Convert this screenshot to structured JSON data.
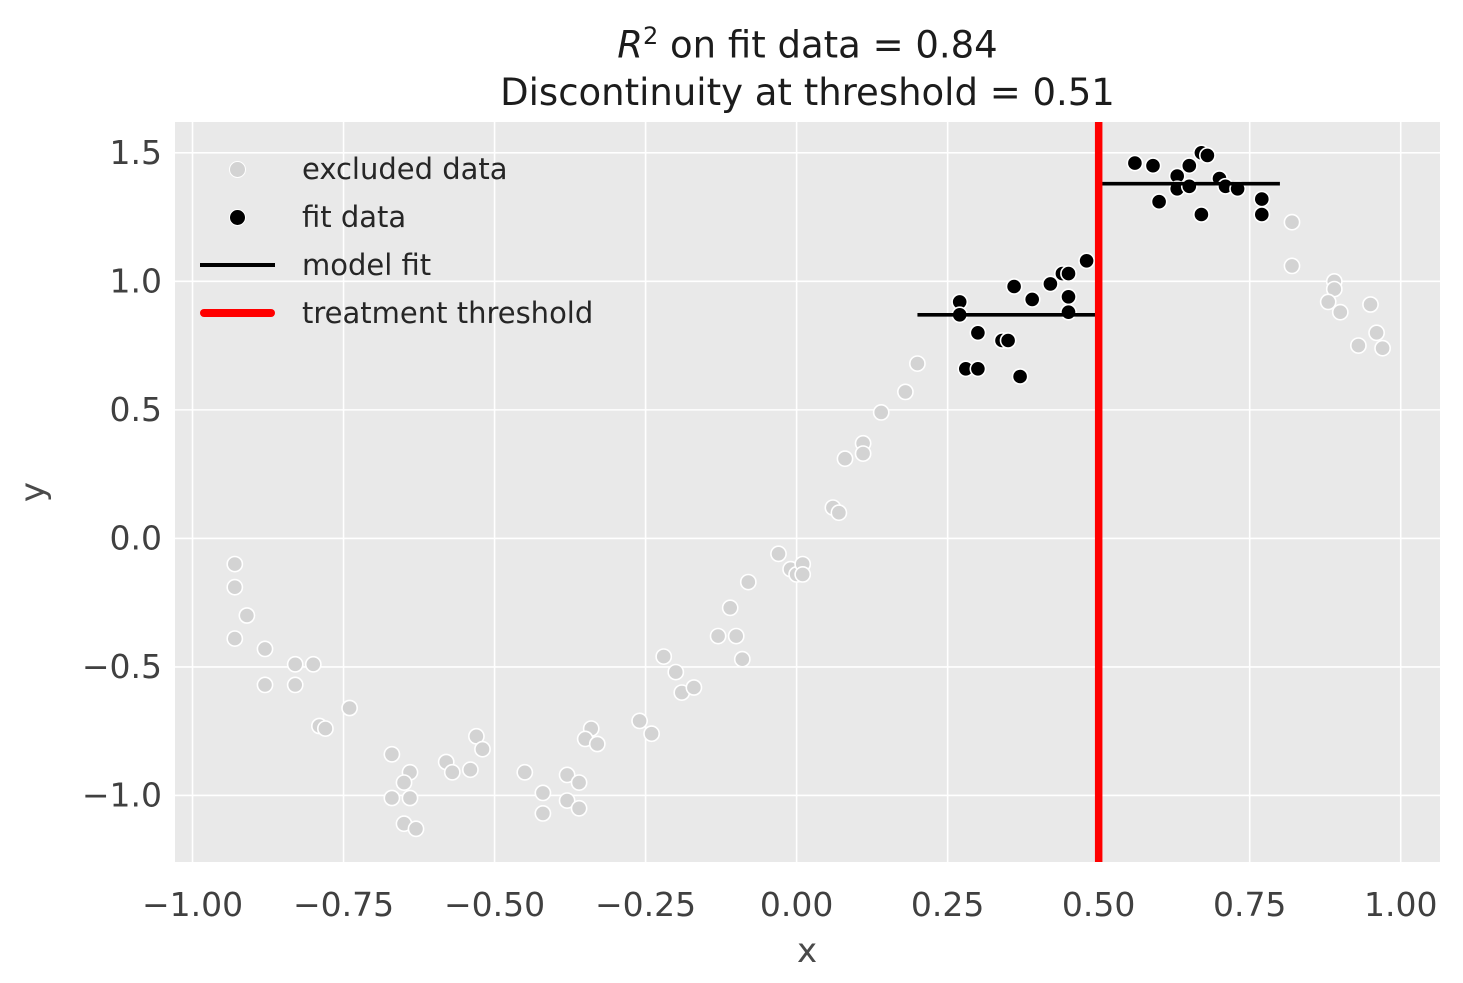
{
  "title": {
    "math_var": "R",
    "math_sup": "2",
    "line1_rest": " on fit data = 0.84",
    "line2": "Discontinuity at threshold = 0.51"
  },
  "colors": {
    "figure_bg": "#ffffff",
    "axes_bg": "#e9e9e9",
    "grid": "#ffffff",
    "excluded_marker": "#d3d3d3",
    "fit_marker": "#000000",
    "model_fit_line": "#000000",
    "threshold_line": "#ff0000",
    "marker_edge": "#ffffff",
    "tick_label": "#404040",
    "axis_label": "#4a4a4a",
    "title_text": "#1c1c1c"
  },
  "chart_data": {
    "type": "scatter",
    "title_line1": "R² on fit data = 0.84",
    "title_line2": "Discontinuity at threshold = 0.51",
    "xlabel": "x",
    "ylabel": "y",
    "xlim": [
      -1.03,
      1.07
    ],
    "ylim": [
      -1.26,
      1.62
    ],
    "grid": true,
    "legend_position": "upper left",
    "x_ticks": {
      "values": [
        -1.0,
        -0.75,
        -0.5,
        -0.25,
        0.0,
        0.25,
        0.5,
        0.75,
        1.0
      ],
      "labels": [
        "−1.00",
        "−0.75",
        "−0.50",
        "−0.25",
        "0.00",
        "0.25",
        "0.50",
        "0.75",
        "1.00"
      ]
    },
    "y_ticks": {
      "values": [
        1.5,
        1.0,
        0.5,
        0.0,
        -0.5,
        -1.0
      ],
      "labels": [
        "1.5",
        "1.0",
        "0.5",
        "0.0",
        "−0.5",
        "−1.0"
      ]
    },
    "stats": {
      "r_squared_on_fit_data": 0.84,
      "discontinuity_at_threshold": 0.51,
      "threshold_x": 0.5
    },
    "series": [
      {
        "name": "excluded data",
        "type": "scatter",
        "color": "#d3d3d3",
        "points": [
          [
            -0.93,
            -0.1
          ],
          [
            -0.93,
            -0.19
          ],
          [
            -0.91,
            -0.3
          ],
          [
            -0.93,
            -0.39
          ],
          [
            -0.88,
            -0.43
          ],
          [
            -0.83,
            -0.49
          ],
          [
            -0.8,
            -0.49
          ],
          [
            -0.88,
            -0.57
          ],
          [
            -0.83,
            -0.57
          ],
          [
            -0.74,
            -0.66
          ],
          [
            -0.79,
            -0.73
          ],
          [
            -0.78,
            -0.74
          ],
          [
            -0.67,
            -0.84
          ],
          [
            -0.64,
            -0.91
          ],
          [
            -0.65,
            -0.95
          ],
          [
            -0.67,
            -1.01
          ],
          [
            -0.64,
            -1.01
          ],
          [
            -0.65,
            -1.11
          ],
          [
            -0.63,
            -1.13
          ],
          [
            -0.58,
            -0.87
          ],
          [
            -0.57,
            -0.91
          ],
          [
            -0.54,
            -0.9
          ],
          [
            -0.53,
            -0.77
          ],
          [
            -0.52,
            -0.82
          ],
          [
            -0.45,
            -0.91
          ],
          [
            -0.42,
            -0.99
          ],
          [
            -0.42,
            -1.07
          ],
          [
            -0.38,
            -0.92
          ],
          [
            -0.36,
            -0.95
          ],
          [
            -0.38,
            -1.02
          ],
          [
            -0.36,
            -1.05
          ],
          [
            -0.34,
            -0.74
          ],
          [
            -0.35,
            -0.78
          ],
          [
            -0.33,
            -0.8
          ],
          [
            -0.26,
            -0.71
          ],
          [
            -0.24,
            -0.76
          ],
          [
            -0.22,
            -0.46
          ],
          [
            -0.2,
            -0.52
          ],
          [
            -0.19,
            -0.6
          ],
          [
            -0.17,
            -0.58
          ],
          [
            -0.13,
            -0.38
          ],
          [
            -0.1,
            -0.38
          ],
          [
            -0.09,
            -0.47
          ],
          [
            -0.11,
            -0.27
          ],
          [
            -0.08,
            -0.17
          ],
          [
            -0.03,
            -0.06
          ],
          [
            -0.01,
            -0.12
          ],
          [
            0.0,
            -0.14
          ],
          [
            0.01,
            -0.1
          ],
          [
            0.01,
            -0.14
          ],
          [
            0.06,
            0.12
          ],
          [
            0.07,
            0.1
          ],
          [
            0.08,
            0.31
          ],
          [
            0.11,
            0.37
          ],
          [
            0.11,
            0.33
          ],
          [
            0.14,
            0.49
          ],
          [
            0.18,
            0.57
          ],
          [
            0.2,
            0.68
          ],
          [
            0.82,
            1.23
          ],
          [
            0.82,
            1.06
          ],
          [
            0.89,
            1.0
          ],
          [
            0.89,
            0.97
          ],
          [
            0.88,
            0.92
          ],
          [
            0.9,
            0.88
          ],
          [
            0.95,
            0.91
          ],
          [
            0.96,
            0.8
          ],
          [
            0.93,
            0.75
          ],
          [
            0.97,
            0.74
          ]
        ]
      },
      {
        "name": "fit data",
        "type": "scatter",
        "color": "#000000",
        "points": [
          [
            0.27,
            0.92
          ],
          [
            0.27,
            0.87
          ],
          [
            0.3,
            0.8
          ],
          [
            0.34,
            0.77
          ],
          [
            0.35,
            0.77
          ],
          [
            0.36,
            0.98
          ],
          [
            0.39,
            0.93
          ],
          [
            0.42,
            0.99
          ],
          [
            0.44,
            1.03
          ],
          [
            0.45,
            1.03
          ],
          [
            0.45,
            0.94
          ],
          [
            0.45,
            0.88
          ],
          [
            0.48,
            1.08
          ],
          [
            0.28,
            0.66
          ],
          [
            0.3,
            0.66
          ],
          [
            0.37,
            0.63
          ],
          [
            0.56,
            1.46
          ],
          [
            0.59,
            1.45
          ],
          [
            0.63,
            1.41
          ],
          [
            0.65,
            1.45
          ],
          [
            0.67,
            1.5
          ],
          [
            0.68,
            1.49
          ],
          [
            0.63,
            1.36
          ],
          [
            0.65,
            1.37
          ],
          [
            0.7,
            1.4
          ],
          [
            0.71,
            1.37
          ],
          [
            0.73,
            1.36
          ],
          [
            0.6,
            1.31
          ],
          [
            0.67,
            1.26
          ],
          [
            0.77,
            1.32
          ],
          [
            0.77,
            1.26
          ]
        ]
      },
      {
        "name": "model fit",
        "type": "line",
        "color": "#000000",
        "segments": [
          {
            "x": [
              0.2,
              0.503
            ],
            "y": [
              0.87,
              0.87
            ]
          },
          {
            "x": [
              0.503,
              0.8
            ],
            "y": [
              1.38,
              1.38
            ]
          }
        ]
      },
      {
        "name": "treatment threshold",
        "type": "vline",
        "color": "#ff0000",
        "x": 0.5
      }
    ]
  },
  "legend": {
    "items": [
      {
        "label": "excluded data",
        "marker": "dot",
        "color": "#d3d3d3"
      },
      {
        "label": "fit data",
        "marker": "dot",
        "color": "#000000"
      },
      {
        "label": "model fit",
        "marker": "line",
        "color": "#000000"
      },
      {
        "label": "treatment threshold",
        "marker": "thick-line",
        "color": "#ff0000"
      }
    ]
  }
}
